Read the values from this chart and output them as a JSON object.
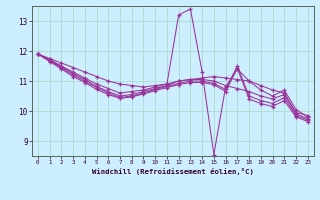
{
  "xlabel": "Windchill (Refroidissement éolien,°C)",
  "bg_color": "#cceeff",
  "line_color": "#993399",
  "grid_color": "#aaddcc",
  "xlim": [
    -0.5,
    23.5
  ],
  "ylim": [
    8.5,
    13.5
  ],
  "yticks": [
    9,
    10,
    11,
    12,
    13
  ],
  "xticks": [
    0,
    1,
    2,
    3,
    4,
    5,
    6,
    7,
    8,
    9,
    10,
    11,
    12,
    13,
    14,
    15,
    16,
    17,
    18,
    19,
    20,
    21,
    22,
    23
  ],
  "series": [
    [
      11.9,
      11.75,
      11.6,
      11.45,
      11.3,
      11.15,
      11.0,
      10.9,
      10.85,
      10.8,
      10.85,
      10.9,
      11.0,
      11.05,
      11.1,
      11.15,
      11.1,
      11.05,
      11.0,
      10.85,
      10.7,
      10.6,
      9.95,
      9.85
    ],
    [
      11.9,
      11.72,
      11.5,
      11.3,
      11.1,
      10.9,
      10.75,
      10.6,
      10.65,
      10.7,
      10.8,
      10.9,
      13.2,
      13.4,
      11.3,
      8.55,
      10.8,
      11.4,
      11.0,
      10.7,
      10.5,
      10.7,
      10.05,
      9.8
    ],
    [
      11.9,
      11.7,
      11.48,
      11.25,
      11.05,
      10.82,
      10.65,
      10.5,
      10.55,
      10.65,
      10.75,
      10.85,
      11.0,
      11.05,
      11.05,
      11.0,
      10.85,
      10.75,
      10.65,
      10.5,
      10.4,
      10.55,
      9.9,
      9.75
    ],
    [
      11.9,
      11.68,
      11.45,
      11.2,
      11.0,
      10.78,
      10.6,
      10.45,
      10.5,
      10.6,
      10.72,
      10.82,
      10.92,
      11.0,
      11.0,
      10.92,
      10.72,
      11.5,
      10.5,
      10.35,
      10.25,
      10.45,
      9.85,
      9.7
    ],
    [
      11.9,
      11.65,
      11.4,
      11.15,
      10.95,
      10.72,
      10.55,
      10.42,
      10.47,
      10.57,
      10.68,
      10.78,
      10.88,
      10.95,
      10.95,
      10.88,
      10.65,
      11.42,
      10.4,
      10.25,
      10.15,
      10.35,
      9.8,
      9.65
    ]
  ]
}
